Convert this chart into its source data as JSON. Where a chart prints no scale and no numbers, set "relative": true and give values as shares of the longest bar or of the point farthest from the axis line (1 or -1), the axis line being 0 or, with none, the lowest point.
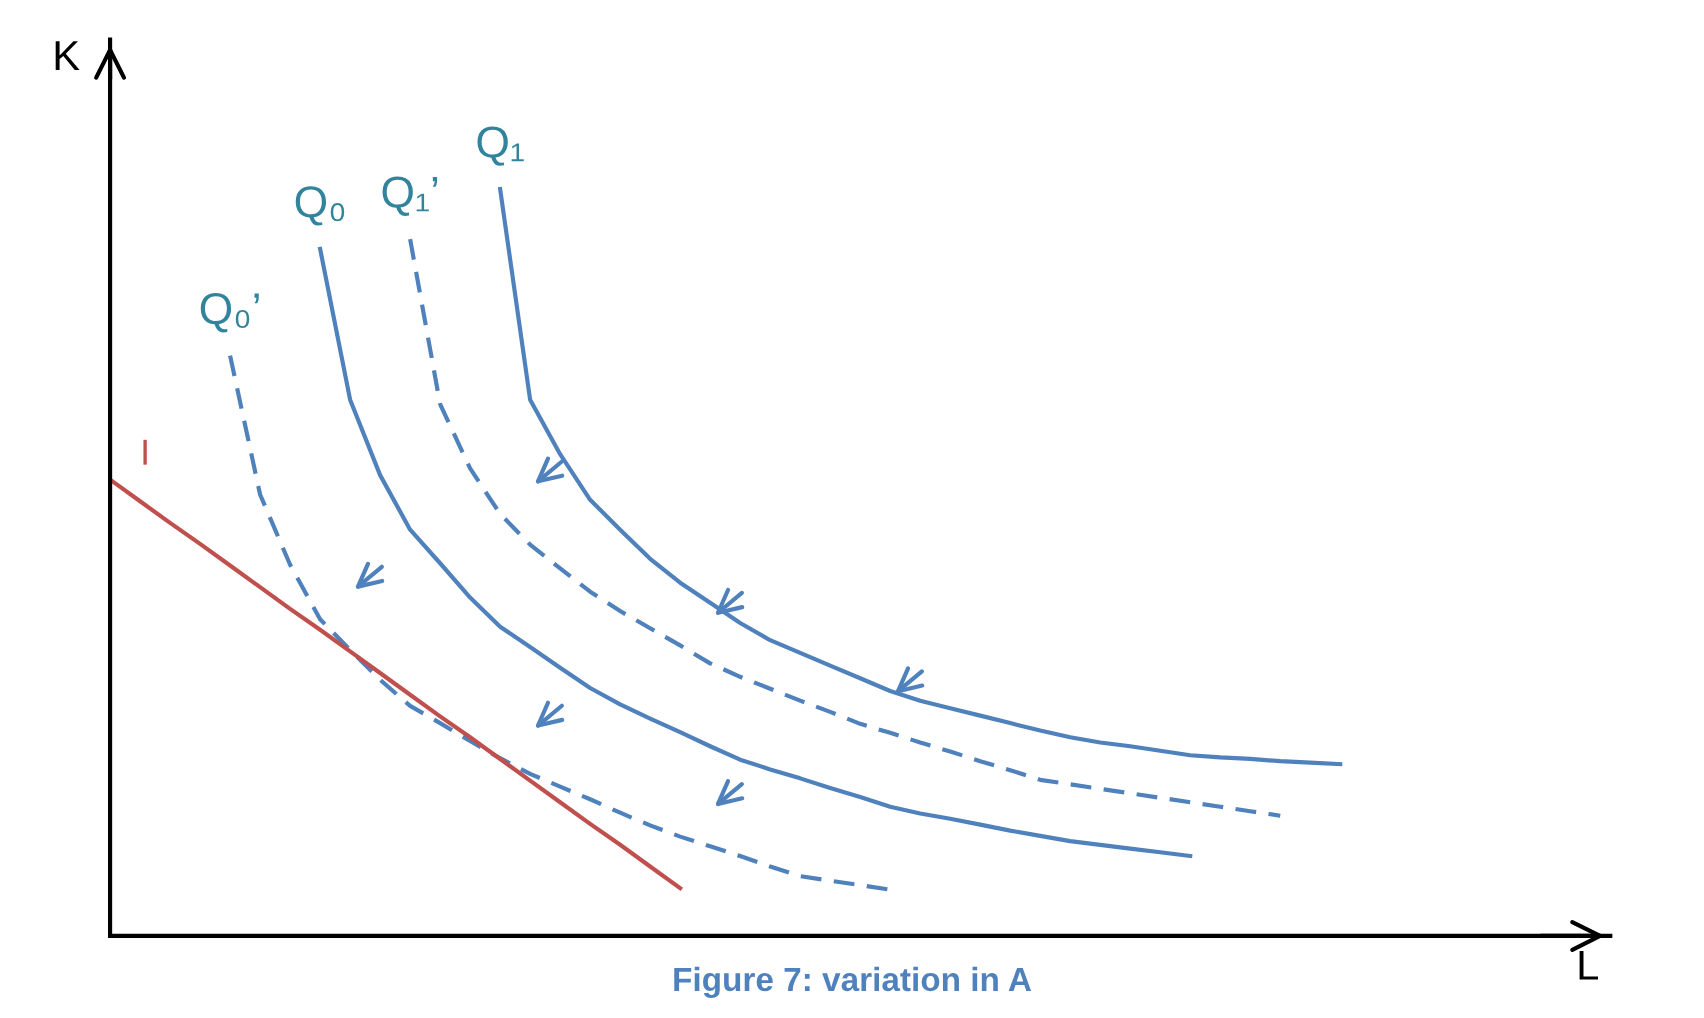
{
  "chart_data": {
    "type": "line",
    "relative": true,
    "xlabel": "L",
    "ylabel": "K",
    "annotations": [
      "Figure 7: variation in A"
    ],
    "categories": [
      null,
      null,
      null,
      null,
      null,
      null,
      null,
      null,
      null,
      null,
      null,
      null,
      null,
      null,
      null,
      null,
      null,
      null,
      null,
      null,
      null,
      null,
      null,
      null,
      null,
      null,
      null,
      null,
      null,
      null,
      null,
      null,
      null,
      null,
      null,
      null,
      null,
      null,
      null,
      null,
      null,
      null,
      null
    ],
    "series": [
      {
        "name": "Q₁",
        "color": "#4f81bd",
        "line_style": "solid",
        "values": [
          null,
          null,
          null,
          null,
          null,
          null,
          null,
          null,
          null,
          null,
          null,
          null,
          null,
          1,
          0.718,
          0.645,
          0.584,
          0.544,
          0.505,
          0.473,
          0.446,
          0.419,
          0.396,
          0.379,
          0.362,
          0.345,
          0.328,
          0.315,
          0.305,
          0.295,
          0.285,
          0.275,
          0.266,
          0.259,
          0.254,
          0.248,
          0.242,
          0.239,
          0.237,
          0.234,
          0.232,
          0.23,
          null
        ]
      },
      {
        "name": "Q₁’",
        "color": "#4f81bd",
        "line_style": "dashed",
        "values": [
          null,
          null,
          null,
          null,
          null,
          null,
          null,
          null,
          null,
          null,
          0.933,
          0.712,
          0.626,
          0.565,
          0.524,
          0.492,
          0.461,
          0.435,
          0.412,
          0.389,
          0.365,
          0.347,
          0.331,
          0.315,
          0.3,
          0.284,
          0.272,
          0.259,
          0.247,
          0.234,
          0.222,
          0.209,
          0.203,
          0.197,
          0.191,
          0.185,
          0.179,
          0.173,
          0.167,
          0.161,
          null,
          null,
          null
        ]
      },
      {
        "name": "Q₀",
        "color": "#4f81bd",
        "line_style": "solid",
        "values": [
          null,
          null,
          null,
          null,
          null,
          null,
          null,
          0.92,
          0.718,
          0.617,
          0.544,
          0.499,
          0.453,
          0.414,
          0.387,
          0.359,
          0.332,
          0.31,
          0.291,
          0.273,
          0.254,
          0.236,
          0.223,
          0.211,
          0.198,
          0.186,
          0.173,
          0.164,
          0.157,
          0.149,
          0.141,
          0.134,
          0.127,
          0.122,
          0.117,
          0.112,
          0.107,
          null,
          null,
          null,
          null,
          null,
          null
        ]
      },
      {
        "name": "Q₀’",
        "color": "#4f81bd",
        "line_style": "dashed",
        "values": [
          null,
          null,
          null,
          null,
          0.777,
          0.591,
          0.497,
          0.424,
          0.383,
          0.343,
          0.308,
          0.285,
          0.261,
          0.238,
          0.217,
          0.2,
          0.183,
          0.165,
          0.148,
          0.133,
          0.12,
          0.107,
          0.093,
          0.08,
          0.074,
          0.068,
          0.062,
          null,
          null,
          null,
          null,
          null,
          null,
          null,
          null,
          null,
          null,
          null,
          null,
          null,
          null,
          null,
          null
        ]
      },
      {
        "name": "I",
        "color": "#c0504d",
        "line_style": "solid",
        "values": [
          0.611,
          0.582,
          0.553,
          0.525,
          0.496,
          0.467,
          0.438,
          0.41,
          0.381,
          0.352,
          0.323,
          0.294,
          0.266,
          0.237,
          0.208,
          0.179,
          0.15,
          0.122,
          0.093,
          0.064,
          null,
          null,
          null,
          null,
          null,
          null,
          null,
          null,
          null,
          null,
          null,
          null,
          null,
          null,
          null,
          null,
          null,
          null,
          null,
          null,
          null,
          null,
          null
        ]
      }
    ]
  }
}
